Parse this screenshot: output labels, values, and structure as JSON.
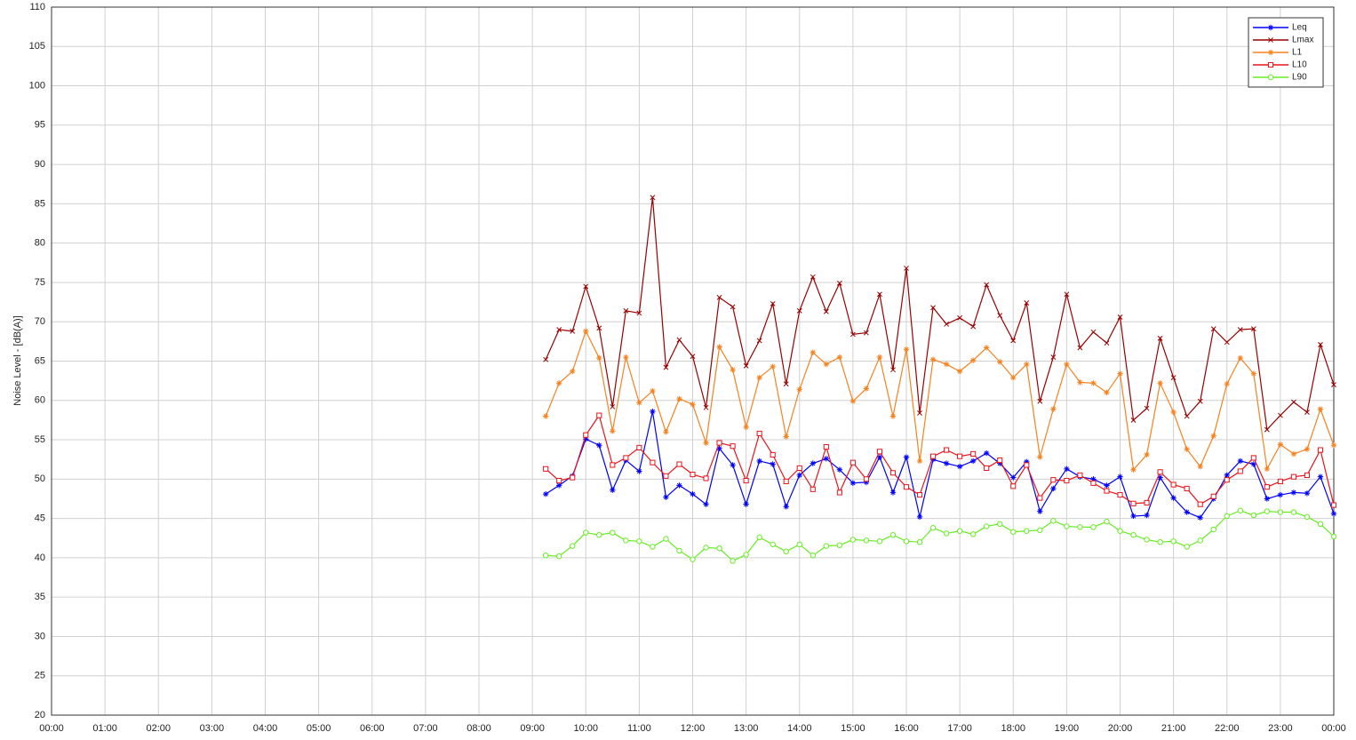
{
  "chart_data": {
    "type": "line",
    "y_label": "Noise Level - [dB(A)]",
    "x": [
      9.25,
      9.5,
      9.75,
      10,
      10.25,
      10.5,
      10.75,
      11,
      11.25,
      11.5,
      11.75,
      12,
      12.25,
      12.5,
      12.75,
      13,
      13.25,
      13.5,
      13.75,
      14,
      14.25,
      14.5,
      14.75,
      15,
      15.25,
      15.5,
      15.75,
      16,
      16.25,
      16.5,
      16.75,
      17,
      17.25,
      17.5,
      17.75,
      18,
      18.25,
      18.5,
      18.75,
      19,
      19.25,
      19.5,
      19.75,
      20,
      20.25,
      20.5,
      20.75,
      21,
      21.25,
      21.5,
      21.75,
      22,
      22.25,
      22.5,
      22.75,
      23,
      23.25,
      23.5,
      23.75,
      24
    ],
    "series": [
      {
        "name": "Leq",
        "color": "#0000ff",
        "marker": "asterisk",
        "values": [
          48.1,
          49.2,
          50.4,
          55.1,
          54.3,
          48.6,
          52.4,
          51,
          58.6,
          47.7,
          49.2,
          48.1,
          46.8,
          53.9,
          51.8,
          46.8,
          52.3,
          51.9,
          46.5,
          50.5,
          52,
          52.6,
          51.2,
          49.5,
          49.6,
          52.8,
          48.3,
          52.8,
          45.2,
          52.5,
          52,
          51.6,
          52.3,
          53.3,
          52,
          50.2,
          52.2,
          45.9,
          48.8,
          51.3,
          50.3,
          50,
          49.2,
          50.3,
          45.3,
          45.4,
          50.2,
          47.6,
          45.8,
          45.1,
          47.5,
          50.5,
          52.3,
          51.9,
          47.5,
          48,
          48.3,
          48.2,
          50.3,
          45.6
        ]
      },
      {
        "name": "Lmax",
        "color": "#990000",
        "marker": "cross",
        "values": [
          65.2,
          69,
          68.8,
          74.5,
          69.2,
          59.2,
          71.4,
          71.1,
          85.8,
          64.2,
          67.7,
          65.6,
          59.1,
          73.1,
          71.9,
          64.4,
          67.6,
          72.3,
          62.1,
          71.4,
          75.7,
          71.3,
          74.9,
          68.4,
          68.6,
          73.5,
          63.9,
          76.8,
          58.4,
          71.8,
          69.7,
          70.5,
          69.4,
          74.7,
          70.8,
          67.6,
          72.4,
          59.9,
          65.5,
          73.5,
          66.7,
          68.7,
          67.3,
          70.6,
          57.5,
          59,
          67.9,
          62.9,
          58,
          59.9,
          69.1,
          67.4,
          69,
          69.1,
          56.3,
          58.1,
          59.8,
          58.5,
          67.1,
          62
        ]
      },
      {
        "name": "L1",
        "color": "#f5821f",
        "marker": "asterisk",
        "values": [
          58,
          62.2,
          63.7,
          68.8,
          65.4,
          56.1,
          65.5,
          59.7,
          61.2,
          56,
          60.2,
          59.5,
          54.6,
          66.8,
          63.9,
          56.6,
          62.9,
          64.3,
          55.4,
          61.4,
          66.1,
          64.6,
          65.5,
          59.9,
          61.5,
          65.5,
          58,
          66.5,
          52.3,
          65.2,
          64.6,
          63.7,
          65.1,
          66.7,
          64.9,
          62.9,
          64.6,
          52.8,
          58.9,
          64.6,
          62.3,
          62.2,
          61,
          63.4,
          51.2,
          53.1,
          62.2,
          58.5,
          53.8,
          51.6,
          55.5,
          62.1,
          65.4,
          63.4,
          51.3,
          54.4,
          53.2,
          53.8,
          58.9,
          54.3
        ]
      },
      {
        "name": "L10",
        "color": "#e8141b",
        "marker": "square",
        "values": [
          51.3,
          49.8,
          50.2,
          55.6,
          58.1,
          51.8,
          52.7,
          54,
          52.1,
          50.4,
          51.9,
          50.6,
          50.1,
          54.6,
          54.2,
          49.8,
          55.8,
          53.1,
          49.7,
          51.4,
          48.7,
          54.1,
          48.3,
          52.1,
          50,
          53.5,
          50.8,
          49,
          48,
          52.9,
          53.7,
          52.9,
          53.2,
          51.4,
          52.4,
          49.1,
          51.8,
          47.6,
          49.9,
          49.8,
          50.5,
          49.5,
          48.5,
          48,
          46.9,
          47,
          50.9,
          49.3,
          48.8,
          46.8,
          47.8,
          49.9,
          51,
          52.7,
          49,
          49.7,
          50.3,
          50.5,
          53.7,
          46.7
        ]
      },
      {
        "name": "L90",
        "color": "#66ee22",
        "marker": "circle",
        "values": [
          40.3,
          40.2,
          41.5,
          43.2,
          42.9,
          43.2,
          42.2,
          42.1,
          41.4,
          42.4,
          40.9,
          39.8,
          41.3,
          41.2,
          39.6,
          40.4,
          42.6,
          41.7,
          40.8,
          41.7,
          40.3,
          41.5,
          41.6,
          42.3,
          42.2,
          42.1,
          42.9,
          42.1,
          42,
          43.8,
          43.1,
          43.4,
          43,
          44,
          44.3,
          43.3,
          43.4,
          43.5,
          44.7,
          44,
          43.9,
          43.9,
          44.6,
          43.4,
          42.9,
          42.3,
          42,
          42.1,
          41.4,
          42.2,
          43.6,
          45.3,
          46,
          45.4,
          45.9,
          45.8,
          45.8,
          45.2,
          44.3,
          42.7
        ]
      }
    ],
    "xlim": [
      0,
      24
    ],
    "xticks": [
      {
        "value": 0,
        "label": "00:00"
      },
      {
        "value": 1,
        "label": "01:00"
      },
      {
        "value": 2,
        "label": "02:00"
      },
      {
        "value": 3,
        "label": "03:00"
      },
      {
        "value": 4,
        "label": "04:00"
      },
      {
        "value": 5,
        "label": "05:00"
      },
      {
        "value": 6,
        "label": "06:00"
      },
      {
        "value": 7,
        "label": "07:00"
      },
      {
        "value": 8,
        "label": "08:00"
      },
      {
        "value": 9,
        "label": "09:00"
      },
      {
        "value": 10,
        "label": "10:00"
      },
      {
        "value": 11,
        "label": "11:00"
      },
      {
        "value": 12,
        "label": "12:00"
      },
      {
        "value": 13,
        "label": "13:00"
      },
      {
        "value": 14,
        "label": "14:00"
      },
      {
        "value": 15,
        "label": "15:00"
      },
      {
        "value": 16,
        "label": "16:00"
      },
      {
        "value": 17,
        "label": "17:00"
      },
      {
        "value": 18,
        "label": "18:00"
      },
      {
        "value": 19,
        "label": "19:00"
      },
      {
        "value": 20,
        "label": "20:00"
      },
      {
        "value": 21,
        "label": "21:00"
      },
      {
        "value": 22,
        "label": "22:00"
      },
      {
        "value": 23,
        "label": "23:00"
      },
      {
        "value": 24,
        "label": "00:00"
      }
    ],
    "ylim": [
      20,
      110
    ],
    "yticks": [
      20,
      25,
      30,
      35,
      40,
      45,
      50,
      55,
      60,
      65,
      70,
      75,
      80,
      85,
      90,
      95,
      100,
      105,
      110
    ],
    "grid": true,
    "legend": "top-right"
  }
}
